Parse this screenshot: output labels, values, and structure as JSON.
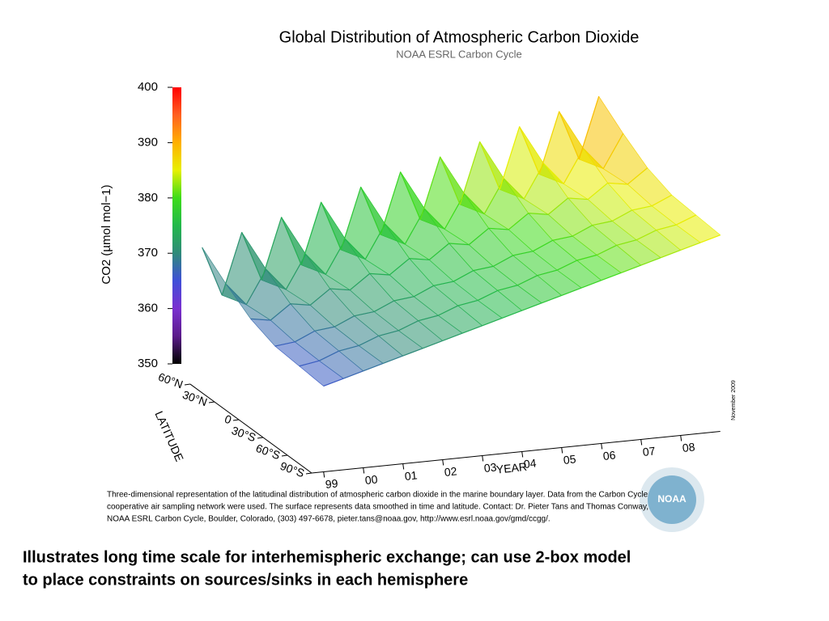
{
  "chart_data": {
    "type": "surface",
    "title": "Global Distribution of Atmospheric Carbon Dioxide",
    "subtitle": "NOAA ESRL Carbon Cycle",
    "zlabel": "CO2 (µmol mol−1)",
    "ylabel": "LATITUDE",
    "xlabel": "YEAR",
    "date_note": "November 2009",
    "logo_text": "NOAA",
    "zlim": [
      350,
      400
    ],
    "zticks": [
      350,
      360,
      370,
      380,
      390,
      400
    ],
    "ylim": [
      -90,
      60
    ],
    "yticks": [
      {
        "value": -90,
        "label": "90°S"
      },
      {
        "value": -60,
        "label": "60°S"
      },
      {
        "value": -30,
        "label": "30°S"
      },
      0,
      {
        "value": 30,
        "label": "30°N"
      },
      {
        "value": 60,
        "label": "60°N"
      }
    ],
    "xlim": [
      1999,
      2009
    ],
    "xticks": [
      {
        "value": 1999,
        "label": "99"
      },
      {
        "value": 2000,
        "label": "00"
      },
      {
        "value": 2001,
        "label": "01"
      },
      {
        "value": 2002,
        "label": "02"
      },
      {
        "value": 2003,
        "label": "03"
      },
      {
        "value": 2004,
        "label": "04"
      },
      {
        "value": 2005,
        "label": "05"
      },
      {
        "value": 2006,
        "label": "06"
      },
      {
        "value": 2007,
        "label": "07"
      },
      {
        "value": 2008,
        "label": "08"
      }
    ],
    "colormap": [
      [
        350,
        "#000000"
      ],
      [
        355,
        "#5a1a8a"
      ],
      [
        360,
        "#7a2fd0"
      ],
      [
        365,
        "#3f4fd8"
      ],
      [
        370,
        "#2f8a7a"
      ],
      [
        375,
        "#22b84a"
      ],
      [
        380,
        "#3ddc1a"
      ],
      [
        385,
        "#e8f000"
      ],
      [
        390,
        "#ffb000"
      ],
      [
        395,
        "#ff6020"
      ],
      [
        400,
        "#ff0000"
      ]
    ],
    "x": [
      1999,
      1999.5,
      2000,
      2000.5,
      2001,
      2001.5,
      2002,
      2002.5,
      2003,
      2003.5,
      2004,
      2004.5,
      2005,
      2005.5,
      2006,
      2006.5,
      2007,
      2007.5,
      2008,
      2008.5,
      2009
    ],
    "series": [
      {
        "latitude": -90,
        "values": [
          365.5,
          366.5,
          367.5,
          368.5,
          369.5,
          370.5,
          371.5,
          372.5,
          373.5,
          374.5,
          375.5,
          376.5,
          377.5,
          378.5,
          379.5,
          380.5,
          381.5,
          382.5,
          383.5,
          384.5,
          385.5
        ]
      },
      {
        "latitude": -60,
        "values": [
          365.9,
          366.5,
          367.9,
          368.5,
          369.9,
          370.5,
          371.9,
          372.5,
          373.9,
          374.5,
          375.9,
          376.5,
          377.9,
          378.5,
          379.9,
          380.5,
          381.9,
          382.5,
          383.9,
          384.5,
          385.9
        ]
      },
      {
        "latitude": -30,
        "values": [
          366.3,
          366.7,
          368.3,
          368.7,
          370.3,
          370.7,
          372.3,
          372.7,
          374.3,
          374.7,
          376.3,
          376.7,
          378.3,
          378.7,
          380.3,
          380.7,
          382.3,
          382.7,
          384.3,
          384.7,
          386.3
        ]
      },
      {
        "latitude": 0,
        "values": [
          368.0,
          367.4,
          370.0,
          369.4,
          372.0,
          371.4,
          374.0,
          373.4,
          376.0,
          375.4,
          378.0,
          377.4,
          380.0,
          379.4,
          382.0,
          381.4,
          384.0,
          383.4,
          386.0,
          385.4,
          388.0
        ]
      },
      {
        "latitude": 30,
        "values": [
          371,
          367,
          373,
          369,
          375,
          371,
          377,
          373,
          379,
          375,
          381,
          377,
          383,
          379,
          385,
          381,
          387,
          383,
          389,
          385,
          391
        ]
      },
      {
        "latitude": 60,
        "values": [
          374.5,
          365.5,
          376.5,
          367.5,
          378.5,
          369.5,
          380.5,
          371.5,
          382.5,
          373.5,
          384.5,
          375.5,
          386.5,
          377.5,
          388.5,
          379.5,
          390.5,
          381.5,
          392.5,
          383.5,
          394.5
        ]
      }
    ],
    "caption": [
      "Three-dimensional representation of the latitudinal distribution of atmospheric carbon dioxide in the marine boundary layer.  Data from the Carbon Cycle",
      "cooperative air sampling network were used.  The surface represents data smoothed in time and latitude.  Contact:  Dr. Pieter Tans and Thomas Conway,",
      "NOAA ESRL Carbon Cycle, Boulder, Colorado, (303) 497-6678, pieter.tans@noaa.gov, http://www.esrl.noaa.gov/gmd/ccgg/."
    ]
  },
  "slide_text": [
    "Illustrates long time scale for interhemispheric exchange; can use 2-box model",
    "to place constraints on sources/sinks in each hemisphere"
  ]
}
